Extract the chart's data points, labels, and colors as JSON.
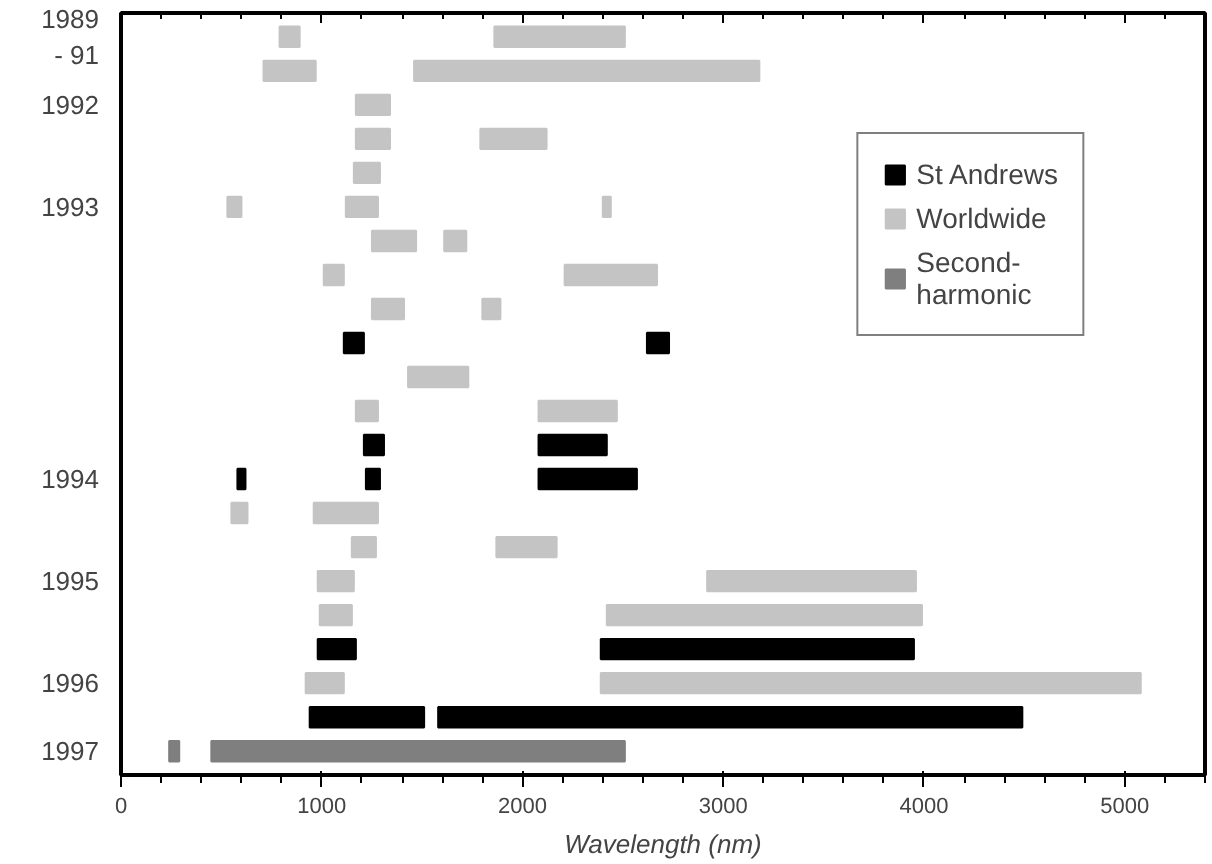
{
  "chart_data": {
    "type": "bar",
    "orientation": "horizontal",
    "xlabel": "Wavelength (nm)",
    "categories": [
      "1989\n- 91",
      null,
      "1992",
      null,
      null,
      "1993",
      null,
      null,
      null,
      null,
      null,
      null,
      null,
      "1994",
      null,
      null,
      "1995",
      null,
      null,
      "1996",
      null,
      "1997"
    ],
    "xlim": [
      0,
      5400
    ],
    "xticks": [
      0,
      1000,
      2000,
      3000,
      4000,
      5000
    ],
    "grid": false,
    "legend": "top right",
    "series": [
      {
        "name": "St Andrews",
        "color": "#000000",
        "base": [
          null,
          null,
          null,
          null,
          null,
          null,
          null,
          null,
          null,
          1110,
          null,
          null,
          1210,
          580,
          null,
          null,
          null,
          null,
          980,
          null,
          940,
          null
        ],
        "values": [
          null,
          null,
          null,
          null,
          null,
          null,
          null,
          null,
          null,
          100,
          null,
          null,
          100,
          40,
          null,
          null,
          null,
          null,
          190,
          null,
          570,
          null
        ]
      },
      {
        "color": "#000000",
        "base": [
          null,
          null,
          null,
          null,
          null,
          null,
          null,
          null,
          null,
          2620,
          null,
          null,
          2080,
          1220,
          null,
          null,
          null,
          null,
          2390,
          null,
          1580,
          null
        ],
        "values": [
          null,
          null,
          null,
          null,
          null,
          null,
          null,
          null,
          null,
          110,
          null,
          null,
          340,
          70,
          null,
          null,
          null,
          null,
          1560,
          null,
          2910,
          null
        ]
      },
      {
        "color": "#000000",
        "base": [
          null,
          null,
          null,
          null,
          null,
          null,
          null,
          null,
          null,
          null,
          null,
          null,
          null,
          2080,
          null,
          null,
          null,
          null,
          null,
          null,
          null,
          null
        ],
        "values": [
          null,
          null,
          null,
          null,
          null,
          null,
          null,
          null,
          null,
          null,
          null,
          null,
          null,
          490,
          null,
          null,
          null,
          null,
          null,
          null,
          null,
          null
        ]
      },
      {
        "name": "Worldwide",
        "color": "#c4c4c4",
        "base": [
          790,
          710,
          1170,
          1170,
          1160,
          530,
          1250,
          1010,
          1250,
          null,
          1430,
          1170,
          null,
          null,
          550,
          1150,
          980,
          990,
          null,
          920,
          null,
          null
        ],
        "values": [
          100,
          260,
          170,
          170,
          130,
          70,
          220,
          100,
          160,
          null,
          300,
          110,
          null,
          null,
          80,
          120,
          180,
          160,
          null,
          190,
          null,
          null
        ]
      },
      {
        "color": "#c4c4c4",
        "base": [
          1860,
          1460,
          null,
          1790,
          null,
          1120,
          1610,
          2210,
          1800,
          null,
          null,
          2080,
          null,
          null,
          960,
          1870,
          2920,
          2420,
          null,
          2390,
          null,
          null
        ],
        "values": [
          650,
          1720,
          null,
          330,
          null,
          160,
          110,
          460,
          90,
          null,
          null,
          390,
          null,
          null,
          320,
          300,
          1040,
          1570,
          null,
          2690,
          null,
          null
        ]
      },
      {
        "color": "#c4c4c4",
        "base": [
          null,
          null,
          null,
          null,
          null,
          2400,
          null,
          null,
          null,
          null,
          null,
          null,
          null,
          null,
          null,
          null,
          null,
          null,
          null,
          null,
          null,
          null
        ],
        "values": [
          null,
          null,
          null,
          null,
          null,
          40,
          null,
          null,
          null,
          null,
          null,
          null,
          null,
          null,
          null,
          null,
          null,
          null,
          null,
          null,
          null,
          null
        ]
      },
      {
        "name": "Second-\nharmonic",
        "color": "#7f7f7f",
        "base": [
          null,
          null,
          null,
          null,
          null,
          null,
          null,
          null,
          null,
          null,
          null,
          null,
          null,
          null,
          null,
          null,
          null,
          null,
          null,
          null,
          null,
          240
        ],
        "values": [
          null,
          null,
          null,
          null,
          null,
          null,
          null,
          null,
          null,
          null,
          null,
          null,
          null,
          null,
          null,
          null,
          null,
          null,
          null,
          null,
          null,
          50
        ]
      },
      {
        "color": "#7f7f7f",
        "base": [
          null,
          null,
          null,
          null,
          null,
          null,
          null,
          null,
          null,
          null,
          null,
          null,
          null,
          null,
          null,
          null,
          null,
          null,
          null,
          null,
          null,
          450
        ],
        "values": [
          null,
          null,
          null,
          null,
          null,
          null,
          null,
          null,
          null,
          null,
          null,
          null,
          null,
          null,
          null,
          null,
          null,
          null,
          null,
          null,
          null,
          2060
        ]
      }
    ]
  }
}
